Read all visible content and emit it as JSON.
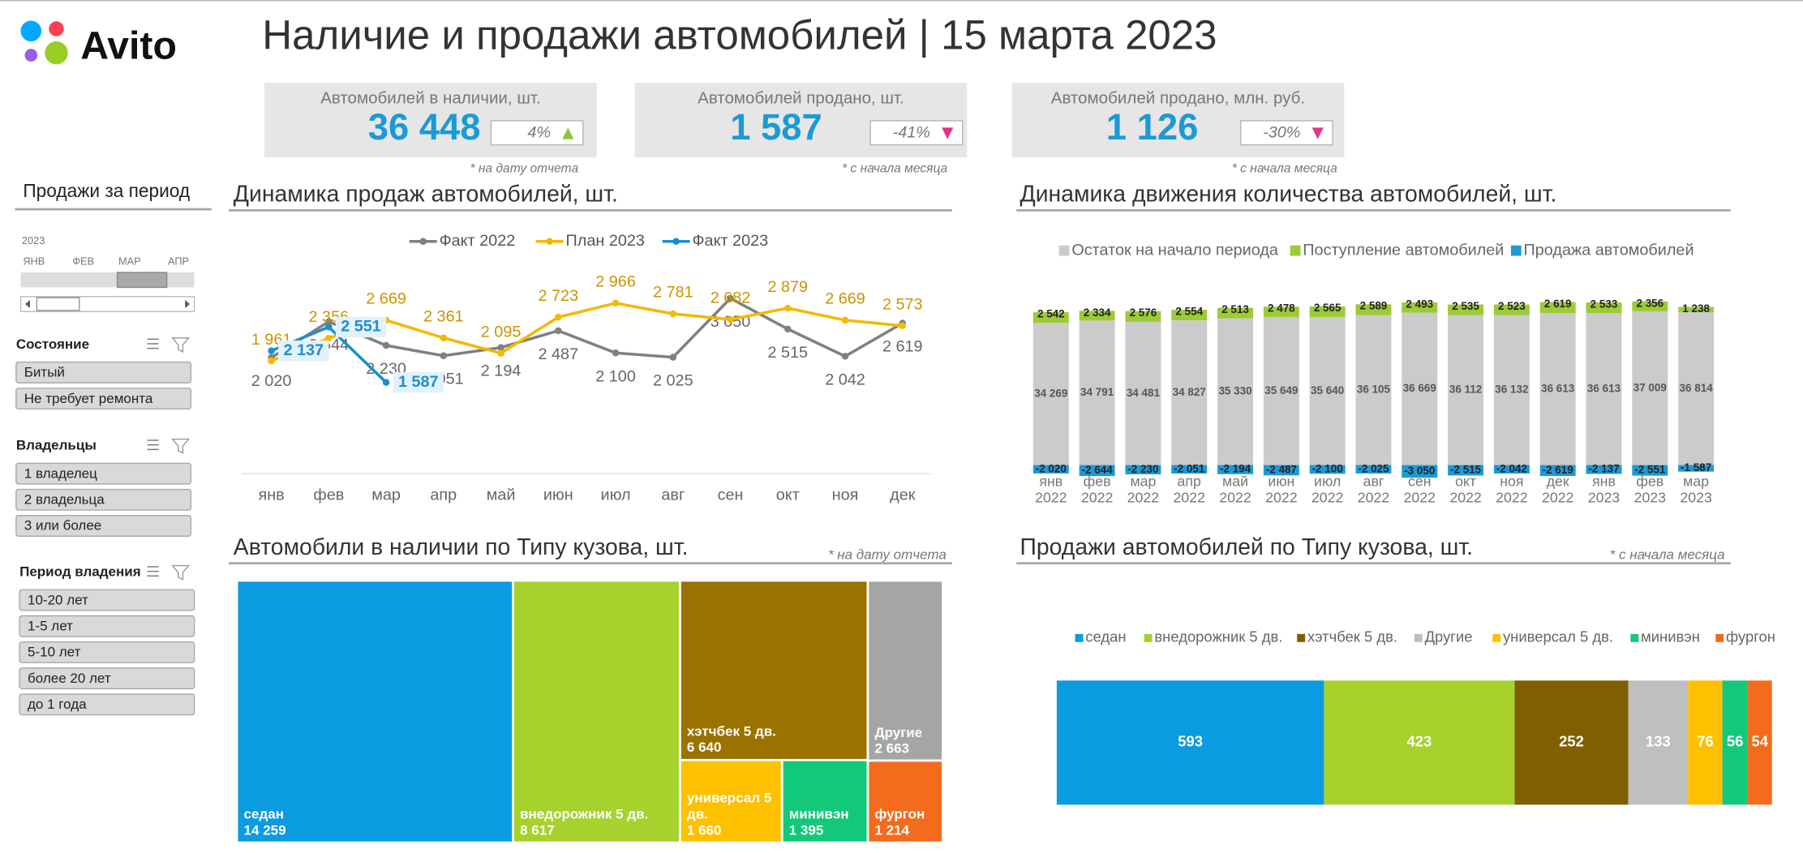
{
  "header": {
    "logo": "Avito",
    "title": "Наличие и продажи автомобилей | 15 марта 2023"
  },
  "kpis": [
    {
      "label": "Автомобилей в наличии, шт.",
      "value": "36 448",
      "change": "4%",
      "trend": "up",
      "note": "* на дату отчета"
    },
    {
      "label": "Автомобилей продано, шт.",
      "value": "1 587",
      "change": "-41%",
      "trend": "down",
      "note": "* с начала месяца"
    },
    {
      "label": "Автомобилей продано, млн. руб.",
      "value": "1 126",
      "change": "-30%",
      "trend": "down",
      "note": "* с начала месяца"
    }
  ],
  "filters": {
    "period": {
      "title": "Продажи за период",
      "year": "2023",
      "months": [
        "ЯНВ",
        "ФЕВ",
        "МАР",
        "АПР"
      ],
      "selected": "МАР"
    },
    "groups": [
      {
        "title": "Состояние",
        "items": [
          "Битый",
          "Не требует ремонта"
        ]
      },
      {
        "title": "Владельцы",
        "items": [
          "1 владелец",
          "2 владельца",
          "3 или более"
        ]
      },
      {
        "title": "Период владения",
        "items": [
          "10-20 лет",
          "1-5 лет",
          "5-10 лет",
          "более 20 лет",
          "до 1 года"
        ]
      }
    ]
  },
  "chart_data": [
    {
      "type": "line",
      "title": "Динамика продаж автомобилей, шт.",
      "categories": [
        "янв",
        "фев",
        "мар",
        "апр",
        "май",
        "июн",
        "июл",
        "авг",
        "сен",
        "окт",
        "ноя",
        "дек"
      ],
      "ylim": [
        0,
        3500
      ],
      "series": [
        {
          "name": "Факт 2022",
          "color": "#808080",
          "label_position": "below",
          "values": [
            2020,
            2644,
            2230,
            2051,
            2194,
            2487,
            2100,
            2025,
            3050,
            2515,
            2042,
            2619
          ],
          "value_labels": [
            "2 020",
            "2 644",
            "2 230",
            "2 051",
            "2 194",
            "2 487",
            "2 100",
            "2 025",
            "3 050",
            "2 515",
            "2 042",
            "2 619"
          ]
        },
        {
          "name": "План 2023",
          "color": "#f5b800",
          "label_position": "above",
          "values": [
            1961,
            2356,
            2669,
            2361,
            2095,
            2723,
            2966,
            2781,
            2682,
            2879,
            2669,
            2573
          ],
          "value_labels": [
            "1 961",
            "2 356",
            "2 669",
            "2 361",
            "2 095",
            "2 723",
            "2 966",
            "2 781",
            "2 682",
            "2 879",
            "2 669",
            "2 573"
          ]
        },
        {
          "name": "Факт 2023",
          "color": "#1a8fd0",
          "label_position": "right",
          "values": [
            2137,
            2551,
            1587,
            null,
            null,
            null,
            null,
            null,
            null,
            null,
            null,
            null
          ],
          "value_labels": [
            "2 137",
            "2 551",
            "1 587",
            null,
            null,
            null,
            null,
            null,
            null,
            null,
            null,
            null
          ]
        }
      ]
    },
    {
      "type": "bar",
      "orientation": "vertical",
      "stacked": true,
      "title": "Динамика движения количества автомобилей, шт.",
      "categories": [
        "янв 2022",
        "фев 2022",
        "мар 2022",
        "апр 2022",
        "май 2022",
        "июн 2022",
        "июл 2022",
        "авг 2022",
        "сен 2022",
        "окт 2022",
        "ноя 2022",
        "дек 2022",
        "янв 2023",
        "фев 2023",
        "мар 2023"
      ],
      "ylim": [
        -4000,
        40000
      ],
      "series": [
        {
          "name": "Остаток на начало периода",
          "color": "#cbcbcb",
          "values": [
            34269,
            34791,
            34481,
            34827,
            35330,
            35649,
            35640,
            36105,
            36669,
            36112,
            36132,
            36613,
            36613,
            37009,
            36814
          ],
          "value_labels": [
            "34 269",
            "34 791",
            "34 481",
            "34 827",
            "35 330",
            "35 649",
            "35 640",
            "36 105",
            "36 669",
            "36 112",
            "36 132",
            "36 613",
            "36 613",
            "37 009",
            "36 814"
          ]
        },
        {
          "name": "Поступление автомобилей",
          "color": "#9ccb35",
          "values": [
            2542,
            2334,
            2576,
            2554,
            2513,
            2478,
            2565,
            2589,
            2493,
            2535,
            2523,
            2619,
            2533,
            2356,
            1238
          ],
          "value_labels": [
            "2 542",
            "2 334",
            "2 576",
            "2 554",
            "2 513",
            "2 478",
            "2 565",
            "2 589",
            "2 493",
            "2 535",
            "2 523",
            "2 619",
            "2 533",
            "2 356",
            "1 238"
          ]
        },
        {
          "name": "Продажа автомобилей",
          "color": "#1c9ad8",
          "values": [
            -2020,
            -2644,
            -2230,
            -2051,
            -2194,
            -2487,
            -2100,
            -2025,
            -3050,
            -2515,
            -2042,
            -2619,
            -2137,
            -2551,
            -1587
          ],
          "value_labels": [
            "-2 020",
            "-2 644",
            "-2 230",
            "-2 051",
            "-2 194",
            "-2 487",
            "-2 100",
            "-2 025",
            "-3 050",
            "-2 515",
            "-2 042",
            "-2 619",
            "-2 137",
            "-2 551",
            "-1 587"
          ]
        }
      ]
    },
    {
      "type": "treemap",
      "title": "Автомобили в наличии по Типу кузова, шт.",
      "note": "* на дату отчета",
      "labels": [
        "седан",
        "внедорожник 5 дв.",
        "хэтчбек 5 дв.",
        "Другие",
        "универсал 5 дв.",
        "минивэн",
        "фургон"
      ],
      "values": [
        14259,
        8617,
        6640,
        2663,
        1660,
        1395,
        1214
      ],
      "value_labels": [
        "14 259",
        "8 617",
        "6 640",
        "2 663",
        "1 660",
        "1 395",
        "1 214"
      ],
      "colors": [
        "#0b9be0",
        "#a7d12c",
        "#9a7200",
        "#a5a5a5",
        "#ffc000",
        "#12c97a",
        "#f36c1d"
      ]
    },
    {
      "type": "bar",
      "orientation": "horizontal",
      "stacked": true,
      "title": "Продажи автомобилей по Типу кузова, шт.",
      "note": "* с начала месяца",
      "series": [
        {
          "name": "седан",
          "color": "#0b9be0",
          "values": [
            593
          ]
        },
        {
          "name": "внедорожник 5 дв.",
          "color": "#a7d12c",
          "values": [
            423
          ]
        },
        {
          "name": "хэтчбек 5 дв.",
          "color": "#7f5f00",
          "values": [
            252
          ]
        },
        {
          "name": "Другие",
          "color": "#bfbfbf",
          "values": [
            133
          ]
        },
        {
          "name": "универсал 5 дв.",
          "color": "#ffc000",
          "values": [
            76
          ]
        },
        {
          "name": "минивэн",
          "color": "#12c97a",
          "values": [
            56
          ]
        },
        {
          "name": "фургон",
          "color": "#f36c1d",
          "values": [
            54
          ]
        }
      ]
    }
  ]
}
